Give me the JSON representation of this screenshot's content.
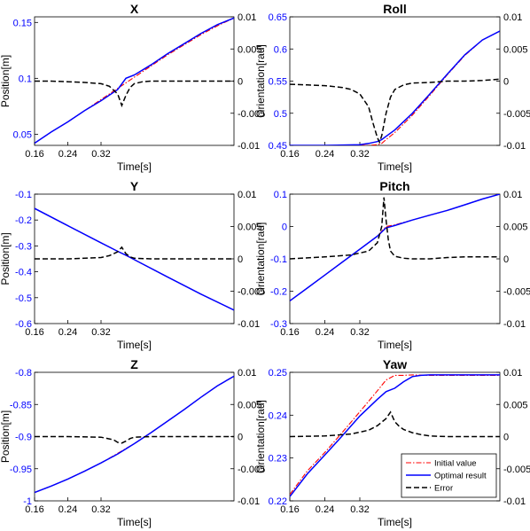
{
  "colors": {
    "initial": "#ff0000",
    "optimal": "#0000ff",
    "error": "#000000",
    "left_axis": "#0000ff",
    "right_axis": "#000000"
  },
  "legend": {
    "placement": "bottom-right",
    "entries": [
      "Initial value",
      "Optimal result",
      "Error"
    ]
  },
  "chart_data": [
    {
      "type": "line",
      "title": "X",
      "xlabel": "Time[s]",
      "ylabel": "Position[m]",
      "xlim": [
        0.16,
        0.64
      ],
      "ylim": [
        0.04,
        0.155
      ],
      "yticks": [
        0.05,
        0.1,
        0.15
      ],
      "ytick_labels": [
        "0.05",
        "0.1",
        "0.15"
      ],
      "y2lim": [
        -0.01,
        0.01
      ],
      "y2ticks": [
        -0.01,
        -0.005,
        0,
        0.005,
        0.01
      ],
      "y2tick_labels": [
        "-0.01",
        "-0.005",
        "0",
        "0.005",
        "0.01"
      ],
      "xticks": [
        0.16,
        0.24,
        0.32
      ],
      "xtick_labels": [
        "0.16",
        "0.24",
        "0.32"
      ],
      "series": [
        {
          "x": [
            0.16,
            0.2,
            0.24,
            0.28,
            0.32,
            0.36,
            0.4,
            0.44,
            0.48,
            0.52,
            0.56,
            0.6,
            0.64
          ],
          "values": [
            0.042,
            0.052,
            0.061,
            0.071,
            0.081,
            0.091,
            0.101,
            0.111,
            0.121,
            0.13,
            0.139,
            0.147,
            0.154
          ]
        },
        {
          "x": [
            0.16,
            0.2,
            0.24,
            0.28,
            0.32,
            0.36,
            0.38,
            0.4,
            0.44,
            0.48,
            0.52,
            0.56,
            0.6,
            0.64
          ],
          "values": [
            0.042,
            0.052,
            0.061,
            0.071,
            0.08,
            0.09,
            0.1,
            0.103,
            0.112,
            0.122,
            0.131,
            0.14,
            0.148,
            0.154
          ]
        },
        {
          "x": [
            0.16,
            0.2,
            0.24,
            0.28,
            0.32,
            0.34,
            0.36,
            0.37,
            0.38,
            0.39,
            0.4,
            0.42,
            0.44,
            0.48,
            0.52,
            0.56,
            0.6,
            0.64
          ],
          "values": [
            0.0,
            0.0,
            -0.0001,
            -0.0002,
            -0.0004,
            -0.0008,
            -0.002,
            -0.0038,
            -0.0022,
            -0.001,
            -0.0004,
            -0.0001,
            0.0,
            0.0,
            0.0,
            0.0,
            0.0,
            0.0
          ]
        }
      ]
    },
    {
      "type": "line",
      "title": "Roll",
      "xlabel": "Time[s]",
      "ylabel": "Orientation[rad]",
      "xlim": [
        0.16,
        0.64
      ],
      "ylim": [
        0.45,
        0.65
      ],
      "yticks": [
        0.45,
        0.5,
        0.55,
        0.6,
        0.65
      ],
      "ytick_labels": [
        "0.45",
        "0.5",
        "0.55",
        "0.6",
        "0.65"
      ],
      "y2lim": [
        -0.01,
        0.01
      ],
      "y2ticks": [
        -0.01,
        -0.005,
        0,
        0.005,
        0.01
      ],
      "y2tick_labels": [
        "-0.01",
        "-0.005",
        "0",
        "0.005",
        "0.01"
      ],
      "xticks": [
        0.16,
        0.24,
        0.32
      ],
      "xtick_labels": [
        "0.16",
        "0.24",
        "0.32"
      ],
      "series": [
        {
          "x": [
            0.16,
            0.24,
            0.32,
            0.34,
            0.36,
            0.37,
            0.38,
            0.4,
            0.44,
            0.48,
            0.52,
            0.56,
            0.6,
            0.64
          ],
          "values": [
            0.45,
            0.45,
            0.45,
            0.45,
            0.451,
            0.453,
            0.459,
            0.47,
            0.497,
            0.528,
            0.56,
            0.59,
            0.614,
            0.628
          ]
        },
        {
          "x": [
            0.16,
            0.24,
            0.32,
            0.34,
            0.36,
            0.37,
            0.38,
            0.4,
            0.44,
            0.48,
            0.52,
            0.56,
            0.6,
            0.64
          ],
          "values": [
            0.45,
            0.45,
            0.451,
            0.453,
            0.456,
            0.459,
            0.464,
            0.474,
            0.5,
            0.53,
            0.561,
            0.591,
            0.614,
            0.628
          ]
        },
        {
          "x": [
            0.16,
            0.2,
            0.24,
            0.28,
            0.3,
            0.32,
            0.34,
            0.35,
            0.36,
            0.365,
            0.37,
            0.38,
            0.39,
            0.4,
            0.42,
            0.44,
            0.48,
            0.52,
            0.56,
            0.6,
            0.64
          ],
          "values": [
            -0.0005,
            -0.0006,
            -0.0007,
            -0.001,
            -0.0013,
            -0.002,
            -0.004,
            -0.0065,
            -0.0088,
            -0.0095,
            -0.0085,
            -0.005,
            -0.0025,
            -0.0013,
            -0.0006,
            -0.0003,
            -0.0002,
            0.0,
            0.0,
            0.0001,
            0.0003
          ]
        }
      ]
    },
    {
      "type": "line",
      "title": "Y",
      "xlabel": "Time[s]",
      "ylabel": "Position[m]",
      "xlim": [
        0.16,
        0.64
      ],
      "ylim": [
        -0.6,
        -0.1
      ],
      "yticks": [
        -0.6,
        -0.5,
        -0.4,
        -0.3,
        -0.2,
        -0.1
      ],
      "ytick_labels": [
        "-0.6",
        "-0.5",
        "-0.4",
        "-0.3",
        "-0.2",
        "-0.1"
      ],
      "y2lim": [
        -0.01,
        0.01
      ],
      "y2ticks": [
        -0.01,
        -0.005,
        0,
        0.005,
        0.01
      ],
      "y2tick_labels": [
        "-0.01",
        "-0.005",
        "0",
        "0.005",
        "0.01"
      ],
      "xticks": [
        0.16,
        0.24,
        0.32
      ],
      "xtick_labels": [
        "0.16",
        "0.24",
        "0.32"
      ],
      "series": [
        {
          "x": [
            0.16,
            0.24,
            0.32,
            0.4,
            0.48,
            0.56,
            0.64
          ],
          "values": [
            -0.155,
            -0.222,
            -0.288,
            -0.353,
            -0.42,
            -0.486,
            -0.548
          ]
        },
        {
          "x": [
            0.16,
            0.24,
            0.32,
            0.36,
            0.38,
            0.4,
            0.48,
            0.56,
            0.64
          ],
          "values": [
            -0.155,
            -0.222,
            -0.288,
            -0.321,
            -0.336,
            -0.353,
            -0.42,
            -0.486,
            -0.548
          ]
        },
        {
          "x": [
            0.16,
            0.24,
            0.32,
            0.34,
            0.36,
            0.37,
            0.38,
            0.39,
            0.4,
            0.44,
            0.48,
            0.56,
            0.64
          ],
          "values": [
            0.0,
            0.0,
            0.0002,
            0.0005,
            0.0011,
            0.0018,
            0.0008,
            0.0003,
            0.0001,
            0.0,
            0.0,
            0.0,
            0.0
          ]
        }
      ]
    },
    {
      "type": "line",
      "title": "Pitch",
      "xlabel": "Time[s]",
      "ylabel": "Orientation[rad]",
      "xlim": [
        0.16,
        0.64
      ],
      "ylim": [
        -0.3,
        0.1
      ],
      "yticks": [
        -0.3,
        -0.2,
        -0.1,
        0,
        0.1
      ],
      "ytick_labels": [
        "-0.3",
        "-0.2",
        "-0.1",
        "0",
        "0.1"
      ],
      "y2lim": [
        -0.01,
        0.01
      ],
      "y2ticks": [
        -0.01,
        -0.005,
        0,
        0.005,
        0.01
      ],
      "y2tick_labels": [
        "-0.01",
        "-0.005",
        "0",
        "0.005",
        "0.01"
      ],
      "xticks": [
        0.16,
        0.24,
        0.32
      ],
      "xtick_labels": [
        "0.16",
        "0.24",
        "0.32"
      ],
      "series": [
        {
          "x": [
            0.16,
            0.2,
            0.24,
            0.28,
            0.32,
            0.36,
            0.38,
            0.4,
            0.44,
            0.48,
            0.52,
            0.56,
            0.6,
            0.64
          ],
          "values": [
            -0.23,
            -0.19,
            -0.15,
            -0.11,
            -0.07,
            -0.03,
            0.0,
            0.005,
            0.02,
            0.035,
            0.05,
            0.067,
            0.085,
            0.1
          ]
        },
        {
          "x": [
            0.16,
            0.2,
            0.24,
            0.28,
            0.32,
            0.36,
            0.38,
            0.4,
            0.44,
            0.48,
            0.52,
            0.56,
            0.6,
            0.64
          ],
          "values": [
            -0.23,
            -0.19,
            -0.15,
            -0.11,
            -0.07,
            -0.03,
            -0.004,
            0.003,
            0.02,
            0.035,
            0.05,
            0.067,
            0.085,
            0.1
          ]
        },
        {
          "x": [
            0.16,
            0.24,
            0.3,
            0.34,
            0.36,
            0.37,
            0.375,
            0.38,
            0.385,
            0.39,
            0.4,
            0.42,
            0.44,
            0.48,
            0.52,
            0.56,
            0.6,
            0.64
          ],
          "values": [
            0.0,
            0.0003,
            0.0006,
            0.0012,
            0.0025,
            0.005,
            0.0095,
            0.006,
            0.003,
            0.0012,
            0.0004,
            0.0001,
            0.0,
            0.0,
            0.0002,
            0.0003,
            0.0003,
            0.0003
          ]
        }
      ]
    },
    {
      "type": "line",
      "title": "Z",
      "xlabel": "Time[s]",
      "ylabel": "Position[m]",
      "xlim": [
        0.16,
        0.64
      ],
      "ylim": [
        -1.0,
        -0.8
      ],
      "yticks": [
        -1,
        -0.95,
        -0.9,
        -0.85,
        -0.8
      ],
      "ytick_labels": [
        "-1",
        "-0.95",
        "-0.9",
        "-0.85",
        "-0.8"
      ],
      "y2lim": [
        -0.01,
        0.01
      ],
      "y2ticks": [
        -0.01,
        -0.005,
        0,
        0.005,
        0.01
      ],
      "y2tick_labels": [
        "-0.01",
        "-0.005",
        "0",
        "0.005",
        "0.01"
      ],
      "xticks": [
        0.16,
        0.24,
        0.32
      ],
      "xtick_labels": [
        "0.16",
        "0.24",
        "0.32"
      ],
      "series": [
        {
          "x": [
            0.16,
            0.2,
            0.24,
            0.28,
            0.32,
            0.36,
            0.4,
            0.44,
            0.48,
            0.52,
            0.56,
            0.6,
            0.64
          ],
          "values": [
            -0.987,
            -0.977,
            -0.966,
            -0.954,
            -0.941,
            -0.926,
            -0.911,
            -0.894,
            -0.876,
            -0.858,
            -0.839,
            -0.821,
            -0.806
          ]
        },
        {
          "x": [
            0.16,
            0.2,
            0.24,
            0.28,
            0.32,
            0.36,
            0.4,
            0.44,
            0.48,
            0.52,
            0.56,
            0.6,
            0.64
          ],
          "values": [
            -0.987,
            -0.977,
            -0.966,
            -0.954,
            -0.941,
            -0.927,
            -0.911,
            -0.894,
            -0.876,
            -0.858,
            -0.839,
            -0.821,
            -0.806
          ]
        },
        {
          "x": [
            0.16,
            0.24,
            0.32,
            0.35,
            0.36,
            0.37,
            0.38,
            0.39,
            0.4,
            0.44,
            0.48,
            0.56,
            0.64
          ],
          "values": [
            0.0,
            0.0,
            -0.0001,
            -0.0005,
            -0.0009,
            -0.001,
            -0.0007,
            -0.0003,
            -0.0001,
            0.0,
            0.0,
            0.0,
            0.0
          ]
        }
      ]
    },
    {
      "type": "line",
      "title": "Yaw",
      "xlabel": "Time[s]",
      "ylabel": "Orientation[rad]",
      "xlim": [
        0.16,
        0.64
      ],
      "ylim": [
        0.22,
        0.25
      ],
      "yticks": [
        0.22,
        0.23,
        0.24,
        0.25
      ],
      "ytick_labels": [
        "0.22",
        "0.23",
        "0.24",
        "0.25"
      ],
      "y2lim": [
        -0.01,
        0.01
      ],
      "y2ticks": [
        -0.01,
        -0.005,
        0,
        0.005,
        0.01
      ],
      "y2tick_labels": [
        "-0.01",
        "-0.005",
        "0",
        "0.005",
        "0.01"
      ],
      "xticks": [
        0.16,
        0.24,
        0.32
      ],
      "xtick_labels": [
        "0.16",
        "0.24",
        "0.32"
      ],
      "series": [
        {
          "x": [
            0.16,
            0.2,
            0.24,
            0.28,
            0.32,
            0.36,
            0.38,
            0.4,
            0.42,
            0.44,
            0.48,
            0.56,
            0.64
          ],
          "values": [
            0.2215,
            0.227,
            0.2313,
            0.236,
            0.2408,
            0.2457,
            0.2482,
            0.2493,
            0.2493,
            0.2494,
            0.2493,
            0.2493,
            0.2493
          ]
        },
        {
          "x": [
            0.16,
            0.2,
            0.24,
            0.28,
            0.32,
            0.36,
            0.38,
            0.4,
            0.42,
            0.44,
            0.46,
            0.48,
            0.52,
            0.56,
            0.64
          ],
          "values": [
            0.221,
            0.2263,
            0.2307,
            0.2352,
            0.2398,
            0.2437,
            0.2455,
            0.2463,
            0.2478,
            0.249,
            0.2493,
            0.2494,
            0.2494,
            0.2494,
            0.2494
          ]
        },
        {
          "x": [
            0.16,
            0.24,
            0.3,
            0.34,
            0.36,
            0.38,
            0.39,
            0.4,
            0.41,
            0.42,
            0.44,
            0.46,
            0.48,
            0.52,
            0.56,
            0.64
          ],
          "values": [
            0.0,
            0.0001,
            0.0004,
            0.001,
            0.0017,
            0.0028,
            0.0038,
            0.0023,
            0.0016,
            0.0011,
            0.0006,
            0.0003,
            0.0001,
            0.0,
            0.0,
            0.0
          ]
        }
      ]
    }
  ]
}
